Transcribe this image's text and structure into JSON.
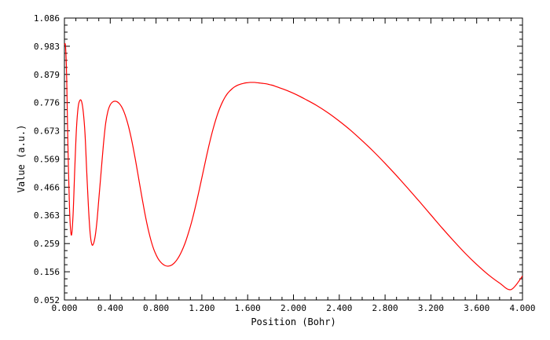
{
  "chart_data": {
    "type": "line",
    "xlabel": "Position (Bohr)",
    "ylabel": "Value (a.u.)",
    "xlim": [
      0.0,
      4.0
    ],
    "ylim": [
      0.052,
      1.086
    ],
    "x_ticks": [
      0.0,
      0.4,
      0.8,
      1.2,
      1.6,
      2.0,
      2.4,
      2.8,
      3.2,
      3.6,
      4.0
    ],
    "x_tick_labels": [
      "0.000",
      "0.400",
      "0.800",
      "1.200",
      "1.600",
      "2.000",
      "2.400",
      "2.800",
      "3.200",
      "3.600",
      "4.000"
    ],
    "y_ticks": [
      0.052,
      0.156,
      0.259,
      0.363,
      0.466,
      0.569,
      0.673,
      0.776,
      0.879,
      0.983,
      1.086
    ],
    "y_tick_labels": [
      "0.052",
      "0.156",
      "0.259",
      "0.363",
      "0.466",
      "0.569",
      "0.673",
      "0.776",
      "0.879",
      "0.983",
      "1.086"
    ],
    "grid": false,
    "line_color": "#ff0000",
    "series": [
      {
        "x": [
          0.0,
          0.01,
          0.02,
          0.03,
          0.045,
          0.06,
          0.075,
          0.09,
          0.105,
          0.12,
          0.135,
          0.15,
          0.165,
          0.18,
          0.195,
          0.21,
          0.225,
          0.24,
          0.255,
          0.27,
          0.285,
          0.3,
          0.32,
          0.34,
          0.36,
          0.38,
          0.4,
          0.42,
          0.44,
          0.46,
          0.48,
          0.5,
          0.52,
          0.54,
          0.56,
          0.58,
          0.6,
          0.62,
          0.64,
          0.66,
          0.68,
          0.7,
          0.72,
          0.74,
          0.76,
          0.78,
          0.8,
          0.82,
          0.84,
          0.86,
          0.88,
          0.9,
          0.92,
          0.94,
          0.96,
          0.98,
          1.0,
          1.02,
          1.04,
          1.06,
          1.08,
          1.1,
          1.12,
          1.14,
          1.16,
          1.18,
          1.2,
          1.22,
          1.24,
          1.26,
          1.28,
          1.3,
          1.32,
          1.34,
          1.36,
          1.38,
          1.4,
          1.42,
          1.44,
          1.46,
          1.48,
          1.5,
          1.52,
          1.54,
          1.56,
          1.58,
          1.6,
          1.62,
          1.64,
          1.66,
          1.68,
          1.7,
          1.72,
          1.74,
          1.76,
          1.78,
          1.8,
          1.82,
          1.84,
          1.86,
          1.88,
          1.9,
          1.95,
          2.0,
          2.05,
          2.1,
          2.2,
          2.3,
          2.4,
          2.5,
          2.6,
          2.7,
          2.8,
          2.9,
          3.0,
          3.1,
          3.2,
          3.3,
          3.4,
          3.5,
          3.6,
          3.7,
          3.8,
          3.9,
          4.0
        ],
        "y": [
          0.99,
          0.98,
          0.86,
          0.63,
          0.38,
          0.29,
          0.36,
          0.53,
          0.68,
          0.76,
          0.784,
          0.78,
          0.74,
          0.66,
          0.52,
          0.39,
          0.295,
          0.255,
          0.26,
          0.29,
          0.345,
          0.42,
          0.52,
          0.62,
          0.7,
          0.745,
          0.768,
          0.778,
          0.781,
          0.779,
          0.772,
          0.76,
          0.742,
          0.718,
          0.688,
          0.652,
          0.611,
          0.566,
          0.518,
          0.469,
          0.421,
          0.375,
          0.333,
          0.296,
          0.264,
          0.238,
          0.218,
          0.202,
          0.191,
          0.183,
          0.178,
          0.176,
          0.177,
          0.181,
          0.188,
          0.198,
          0.211,
          0.227,
          0.246,
          0.268,
          0.294,
          0.322,
          0.353,
          0.387,
          0.423,
          0.461,
          0.5,
          0.539,
          0.578,
          0.615,
          0.65,
          0.682,
          0.711,
          0.737,
          0.759,
          0.778,
          0.794,
          0.807,
          0.817,
          0.825,
          0.832,
          0.837,
          0.841,
          0.844,
          0.846,
          0.848,
          0.849,
          0.85,
          0.85,
          0.85,
          0.849,
          0.848,
          0.847,
          0.846,
          0.845,
          0.843,
          0.841,
          0.839,
          0.836,
          0.833,
          0.83,
          0.827,
          0.819,
          0.81,
          0.8,
          0.789,
          0.766,
          0.739,
          0.708,
          0.674,
          0.636,
          0.596,
          0.553,
          0.508,
          0.461,
          0.413,
          0.364,
          0.315,
          0.268,
          0.223,
          0.182,
          0.145,
          0.114,
          0.09,
          0.14
        ]
      }
    ]
  }
}
